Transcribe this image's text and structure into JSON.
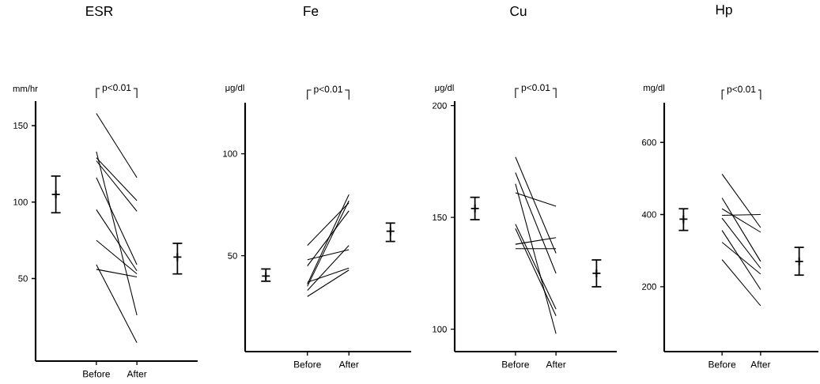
{
  "chart_data": [
    {
      "type": "line",
      "title": "ESR",
      "ylabel": "mm/hr",
      "annotations": [
        "p<0.01"
      ],
      "categories": [
        null,
        "Before",
        "After",
        null
      ],
      "ylim": [
        -4,
        166
      ],
      "yticks": [
        50,
        100,
        150
      ],
      "series": [
        {
          "values": [
            null,
            158,
            116,
            null
          ],
          "color": "#000000"
        },
        {
          "values": [
            null,
            133,
            26,
            null
          ],
          "color": "#000000"
        },
        {
          "values": [
            null,
            129,
            101,
            null
          ],
          "color": "#000000"
        },
        {
          "values": [
            null,
            127,
            94,
            null
          ],
          "color": "#000000"
        },
        {
          "values": [
            null,
            116,
            59,
            null
          ],
          "color": "#000000"
        },
        {
          "values": [
            null,
            95,
            55,
            null
          ],
          "color": "#000000"
        },
        {
          "values": [
            null,
            75,
            53,
            null
          ],
          "color": "#000000"
        },
        {
          "values": [
            null,
            56,
            51,
            null
          ],
          "color": "#000000"
        },
        {
          "values": [
            null,
            59,
            8,
            null
          ],
          "color": "#000000"
        },
        {
          "type": "scatter",
          "marker": "cross",
          "values": [
            105,
            null,
            null,
            64
          ],
          "errors": [
            [
              93,
              117
            ],
            null,
            null,
            [
              53,
              73
            ]
          ],
          "color": "#000000"
        }
      ]
    },
    {
      "type": "line",
      "title": "Fe",
      "ylabel": "μg/dl",
      "annotations": [
        "p<0.01"
      ],
      "categories": [
        null,
        "Before",
        "After",
        null
      ],
      "ylim": [
        3,
        125
      ],
      "yticks": [
        50,
        100
      ],
      "series": [
        {
          "values": [
            null,
            55,
            76,
            null
          ],
          "color": "#000000"
        },
        {
          "values": [
            null,
            48,
            53,
            null
          ],
          "color": "#000000"
        },
        {
          "values": [
            null,
            45,
            72,
            null
          ],
          "color": "#000000"
        },
        {
          "values": [
            null,
            36,
            80,
            null
          ],
          "color": "#000000"
        },
        {
          "values": [
            null,
            35,
            77,
            null
          ],
          "color": "#000000"
        },
        {
          "values": [
            null,
            33,
            55,
            null
          ],
          "color": "#000000"
        },
        {
          "values": [
            null,
            37,
            44,
            null
          ],
          "color": "#000000"
        },
        {
          "values": [
            null,
            30,
            43,
            null
          ],
          "color": "#000000"
        },
        {
          "type": "scatter",
          "marker": "cross",
          "values": [
            40,
            null,
            null,
            62
          ],
          "errors": [
            [
              37.5,
              43.5
            ],
            null,
            null,
            [
              57,
              66
            ]
          ],
          "color": "#000000"
        }
      ]
    },
    {
      "type": "line",
      "title": "Cu",
      "ylabel": "μg/dl",
      "annotations": [
        "p<0.01"
      ],
      "categories": [
        null,
        "Before",
        "After",
        null
      ],
      "ylim": [
        90,
        202
      ],
      "yticks": [
        100,
        150,
        200
      ],
      "series": [
        {
          "values": [
            null,
            177,
            134,
            null
          ],
          "color": "#000000"
        },
        {
          "values": [
            null,
            170,
            125,
            null
          ],
          "color": "#000000"
        },
        {
          "values": [
            null,
            165,
            98,
            null
          ],
          "color": "#000000"
        },
        {
          "values": [
            null,
            161,
            155,
            null
          ],
          "color": "#000000"
        },
        {
          "values": [
            null,
            147,
            109,
            null
          ],
          "color": "#000000"
        },
        {
          "values": [
            null,
            145,
            106,
            null
          ],
          "color": "#000000"
        },
        {
          "values": [
            null,
            138,
            141,
            null
          ],
          "color": "#000000"
        },
        {
          "values": [
            null,
            136,
            136,
            null
          ],
          "color": "#000000"
        },
        {
          "type": "scatter",
          "marker": "cross",
          "values": [
            154,
            null,
            null,
            125
          ],
          "errors": [
            [
              149,
              159
            ],
            null,
            null,
            [
              119,
              131
            ]
          ],
          "color": "#000000"
        }
      ]
    },
    {
      "type": "line",
      "title": "Hp",
      "ylabel": "mg/dl",
      "annotations": [
        "p<0.01"
      ],
      "categories": [
        null,
        "Before",
        "After",
        null
      ],
      "ylim": [
        20,
        710
      ],
      "yticks": [
        200,
        400,
        600
      ],
      "series": [
        {
          "values": [
            null,
            512,
            364,
            null
          ],
          "color": "#000000"
        },
        {
          "values": [
            null,
            446,
            270,
            null
          ],
          "color": "#000000"
        },
        {
          "values": [
            null,
            416,
            351,
            null
          ],
          "color": "#000000"
        },
        {
          "values": [
            null,
            398,
            400,
            null
          ],
          "color": "#000000"
        },
        {
          "values": [
            null,
            390,
            251,
            null
          ],
          "color": "#000000"
        },
        {
          "values": [
            null,
            356,
            192,
            null
          ],
          "color": "#000000"
        },
        {
          "values": [
            null,
            323,
            235,
            null
          ],
          "color": "#000000"
        },
        {
          "values": [
            null,
            275,
            147,
            null
          ],
          "color": "#000000"
        },
        {
          "type": "scatter",
          "marker": "cross",
          "values": [
            387,
            null,
            null,
            270
          ],
          "errors": [
            [
              356,
              416
            ],
            null,
            null,
            [
              232,
              309
            ]
          ],
          "color": "#000000"
        }
      ]
    }
  ]
}
